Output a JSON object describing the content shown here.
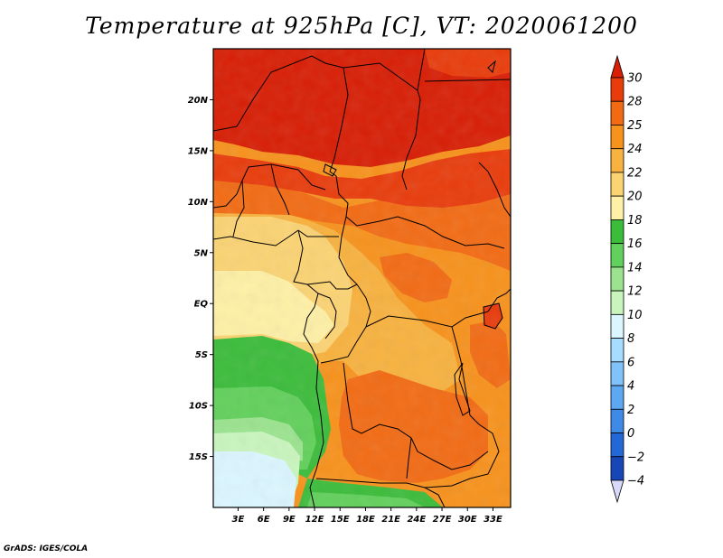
{
  "title": "Temperature at 925hPa [C], VT: 2020061200",
  "credit": "GrADS: IGES/COLA",
  "map": {
    "region": "Central Africa",
    "lon_range": [
      0,
      35
    ],
    "lat_range": [
      -20,
      25
    ],
    "lat_ticks": [
      {
        "value": 20,
        "label": "20N"
      },
      {
        "value": 15,
        "label": "15N"
      },
      {
        "value": 10,
        "label": "10N"
      },
      {
        "value": 5,
        "label": "5N"
      },
      {
        "value": 0,
        "label": "EQ"
      },
      {
        "value": -5,
        "label": "5S"
      },
      {
        "value": -10,
        "label": "10S"
      },
      {
        "value": -15,
        "label": "15S"
      }
    ],
    "lon_ticks": [
      {
        "value": 3,
        "label": "3E"
      },
      {
        "value": 6,
        "label": "6E"
      },
      {
        "value": 9,
        "label": "9E"
      },
      {
        "value": 12,
        "label": "12E"
      },
      {
        "value": 15,
        "label": "15E"
      },
      {
        "value": 18,
        "label": "18E"
      },
      {
        "value": 21,
        "label": "21E"
      },
      {
        "value": 24,
        "label": "24E"
      },
      {
        "value": 27,
        "label": "27E"
      },
      {
        "value": 30,
        "label": "30E"
      },
      {
        "value": 33,
        "label": "33E"
      }
    ]
  },
  "colorbar": {
    "levels": [
      "30",
      "28",
      "25",
      "24",
      "22",
      "20",
      "18",
      "16",
      "14",
      "12",
      "10",
      "8",
      "6",
      "4",
      "2",
      "0",
      "-2",
      "-4"
    ],
    "colors": [
      "#d81e05",
      "#e83c0c",
      "#f26b14",
      "#f7921c",
      "#f8b23f",
      "#fbd373",
      "#fef0a6",
      "#3cbc3b",
      "#62d05c",
      "#9be38f",
      "#c9f5bd",
      "#dbf6ff",
      "#a6ddff",
      "#82c2fb",
      "#5ea8f1",
      "#3e8ae6",
      "#2468d5",
      "#1746b6",
      "#0d1f84"
    ],
    "top_triangle": "#d81e05",
    "bottom_triangle": "#d8d8f8"
  }
}
